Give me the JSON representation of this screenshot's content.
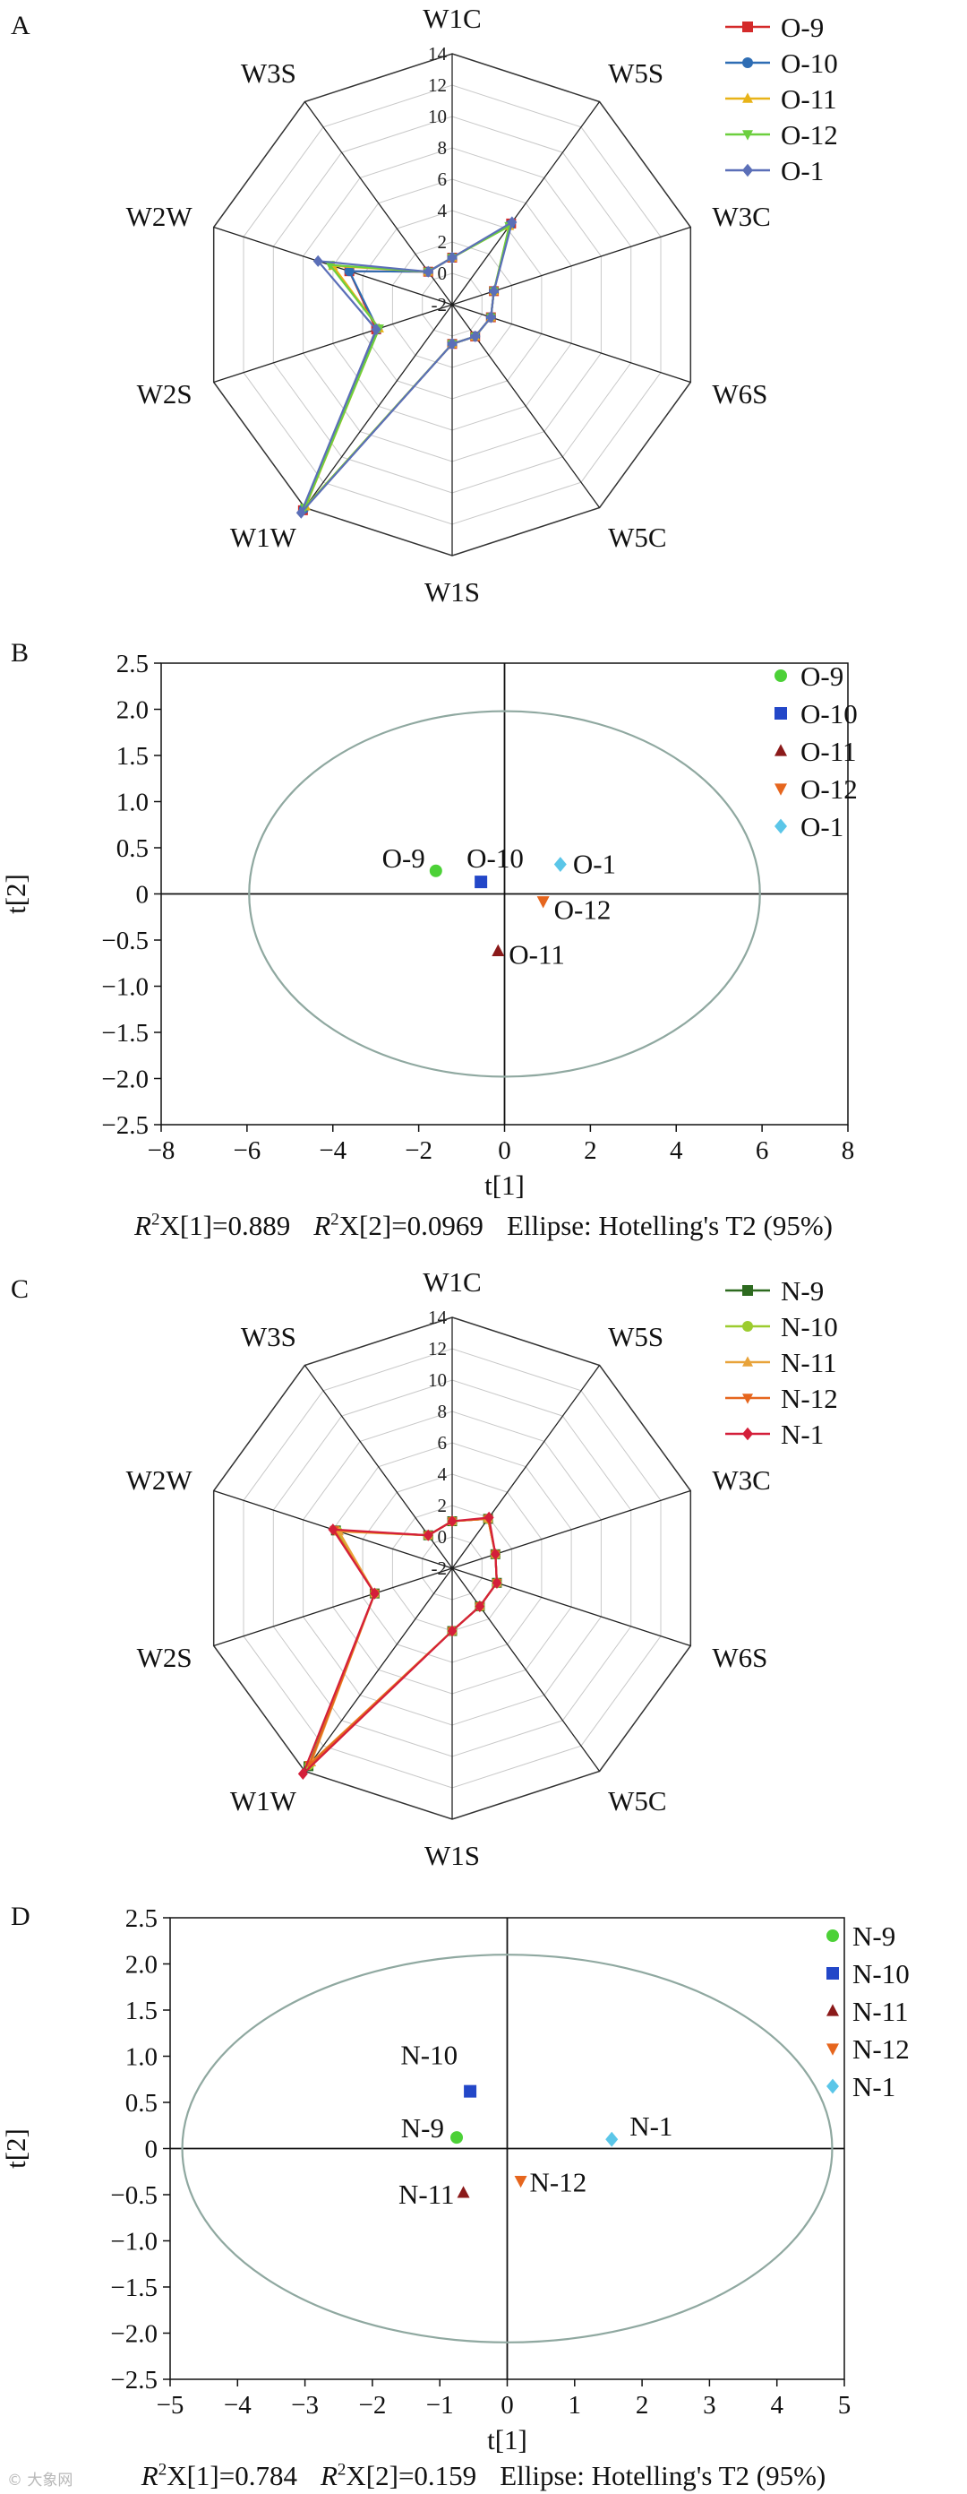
{
  "panels": {
    "A": {
      "label": "A",
      "chart_data": {
        "type": "radar",
        "axes": [
          "W1C",
          "W5S",
          "W3C",
          "W6S",
          "W5C",
          "W1S",
          "W1W",
          "W2S",
          "W2W",
          "W3S"
        ],
        "rlim": [
          -2,
          14
        ],
        "ticks": [
          -2,
          0,
          2,
          4,
          6,
          8,
          10,
          12,
          14
        ],
        "tick_labels": [
          "-2",
          "0",
          "2",
          "4",
          "6",
          "8",
          "10",
          "12",
          "14"
        ],
        "series": [
          {
            "name": "O-9",
            "color": "#d42a2a",
            "marker": "square",
            "values": [
              1.0,
              4.4,
              0.8,
              0.6,
              0.5,
              0.5,
              14.2,
              3.1,
              4.9,
              0.6
            ]
          },
          {
            "name": "O-10",
            "color": "#2e6db4",
            "marker": "circle",
            "values": [
              1.0,
              4.3,
              0.8,
              0.6,
              0.5,
              0.5,
              14.1,
              3.0,
              4.9,
              0.6
            ]
          },
          {
            "name": "O-11",
            "color": "#e8b318",
            "marker": "triangle",
            "values": [
              1.0,
              4.2,
              0.8,
              0.6,
              0.5,
              0.5,
              13.9,
              2.9,
              6.0,
              0.6
            ]
          },
          {
            "name": "O-12",
            "color": "#6ccf3e",
            "marker": "triangle-down",
            "values": [
              1.0,
              4.2,
              0.8,
              0.6,
              0.5,
              0.5,
              14.0,
              2.9,
              6.2,
              0.6
            ]
          },
          {
            "name": "O-1",
            "color": "#5b6fb8",
            "marker": "diamond",
            "values": [
              1.0,
              4.5,
              0.8,
              0.6,
              0.5,
              0.5,
              14.4,
              3.1,
              7.0,
              0.6
            ]
          }
        ]
      }
    },
    "B": {
      "label": "B",
      "chart_data": {
        "type": "scatter",
        "xlabel": "t[1]",
        "ylabel": "t[2]",
        "xlim": [
          -8,
          8
        ],
        "ylim": [
          -2.5,
          2.5
        ],
        "xticks": [
          -8,
          -6,
          -4,
          -2,
          0,
          2,
          4,
          6,
          8
        ],
        "xtick_labels": [
          "−8",
          "−6",
          "−4",
          "−2",
          "0",
          "2",
          "4",
          "6",
          "8"
        ],
        "yticks": [
          -2.5,
          -2.0,
          -1.5,
          -1.0,
          -0.5,
          0,
          0.5,
          1.0,
          1.5,
          2.0,
          2.5
        ],
        "ytick_labels": [
          "−2.5",
          "−2.0",
          "−1.5",
          "−1.0",
          "−0.5",
          "0",
          "0.5",
          "1.0",
          "1.5",
          "2.0",
          "2.5"
        ],
        "ellipse": {
          "cx": 0,
          "cy": 0,
          "rx": 5.95,
          "ry": 1.98
        },
        "points": [
          {
            "name": "O-9",
            "label": "O-9",
            "x": -1.6,
            "y": 0.25,
            "color": "#4cd137",
            "marker": "circle"
          },
          {
            "name": "O-10",
            "label": "O-10",
            "x": -0.55,
            "y": 0.13,
            "color": "#2347c8",
            "marker": "square"
          },
          {
            "name": "O-11",
            "label": "O-11",
            "x": -0.15,
            "y": -0.62,
            "color": "#8b1a1a",
            "marker": "triangle"
          },
          {
            "name": "O-12",
            "label": "O-12",
            "x": 0.9,
            "y": -0.08,
            "color": "#e6661e",
            "marker": "triangle-down"
          },
          {
            "name": "O-1",
            "label": "O-1",
            "x": 1.3,
            "y": 0.32,
            "color": "#5bc6e8",
            "marker": "diamond"
          }
        ]
      },
      "caption": {
        "r2x1_prefix": "R",
        "r2x1_sup": "2",
        "r2x1_text": "X[1]=0.889",
        "r2x2_prefix": "R",
        "r2x2_sup": "2",
        "r2x2_text": "X[2]=0.0969",
        "ellipse_text": "Ellipse: Hotelling's T2 (95%)"
      }
    },
    "C": {
      "label": "C",
      "chart_data": {
        "type": "radar",
        "axes": [
          "W1C",
          "W5S",
          "W3C",
          "W6S",
          "W5C",
          "W1S",
          "W1W",
          "W2S",
          "W2W",
          "W3S"
        ],
        "rlim": [
          -2,
          14
        ],
        "ticks": [
          -2,
          0,
          2,
          4,
          6,
          8,
          10,
          12,
          14
        ],
        "tick_labels": [
          "-2",
          "0",
          "2",
          "4",
          "6",
          "8",
          "10",
          "12",
          "14"
        ],
        "series": [
          {
            "name": "N-9",
            "color": "#2d6a1f",
            "marker": "square",
            "values": [
              1.0,
              1.9,
              0.9,
              1.0,
              1.0,
              2.0,
              13.6,
              3.2,
              5.8,
              0.6
            ]
          },
          {
            "name": "N-10",
            "color": "#9ccc2f",
            "marker": "circle",
            "values": [
              1.0,
              1.9,
              0.9,
              1.0,
              1.0,
              2.0,
              13.5,
              3.2,
              5.7,
              0.6
            ]
          },
          {
            "name": "N-11",
            "color": "#e8a33a",
            "marker": "triangle",
            "values": [
              1.0,
              1.9,
              0.9,
              1.0,
              1.0,
              2.0,
              13.3,
              3.2,
              5.6,
              0.6
            ]
          },
          {
            "name": "N-12",
            "color": "#e6661e",
            "marker": "triangle-down",
            "values": [
              1.0,
              1.9,
              0.9,
              1.0,
              1.0,
              2.0,
              13.5,
              3.2,
              5.9,
              0.6
            ]
          },
          {
            "name": "N-1",
            "color": "#d41f3a",
            "marker": "diamond",
            "values": [
              1.0,
              2.0,
              0.9,
              1.0,
              1.0,
              2.0,
              14.2,
              3.2,
              6.0,
              0.6
            ]
          }
        ]
      }
    },
    "D": {
      "label": "D",
      "chart_data": {
        "type": "scatter",
        "xlabel": "t[1]",
        "ylabel": "t[2]",
        "xlim": [
          -5,
          5
        ],
        "ylim": [
          -2.5,
          2.5
        ],
        "xticks": [
          -5,
          -4,
          -3,
          -2,
          -1,
          0,
          1,
          2,
          3,
          4,
          5
        ],
        "xtick_labels": [
          "−5",
          "−4",
          "−3",
          "−2",
          "−1",
          "0",
          "1",
          "2",
          "3",
          "4",
          "5"
        ],
        "yticks": [
          -2.5,
          -2.0,
          -1.5,
          -1.0,
          -0.5,
          0,
          0.5,
          1.0,
          1.5,
          2.0,
          2.5
        ],
        "ytick_labels": [
          "−2.5",
          "−2.0",
          "−1.5",
          "−1.0",
          "−0.5",
          "0",
          "0.5",
          "1.0",
          "1.5",
          "2.0",
          "2.5"
        ],
        "ellipse": {
          "cx": 0,
          "cy": 0,
          "rx": 4.82,
          "ry": 2.1
        },
        "points": [
          {
            "name": "N-9",
            "label": "N-9",
            "x": -0.75,
            "y": 0.12,
            "color": "#4cd137",
            "marker": "circle"
          },
          {
            "name": "N-10",
            "label": "N-10",
            "x": -0.55,
            "y": 0.62,
            "color": "#2347c8",
            "marker": "square"
          },
          {
            "name": "N-11",
            "label": "N-11",
            "x": -0.65,
            "y": -0.48,
            "color": "#8b1a1a",
            "marker": "triangle"
          },
          {
            "name": "N-12",
            "label": "N-12",
            "x": 0.2,
            "y": -0.35,
            "color": "#e6661e",
            "marker": "triangle-down"
          },
          {
            "name": "N-1",
            "label": "N-1",
            "x": 1.55,
            "y": 0.1,
            "color": "#5bc6e8",
            "marker": "diamond"
          }
        ]
      },
      "caption": {
        "r2x1_prefix": "R",
        "r2x1_sup": "2",
        "r2x1_text": "X[1]=0.784",
        "r2x2_prefix": "R",
        "r2x2_sup": "2",
        "r2x2_text": "X[2]=0.159",
        "ellipse_text": "Ellipse: Hotelling's T2 (95%)"
      }
    }
  },
  "watermark": "© 大象网"
}
